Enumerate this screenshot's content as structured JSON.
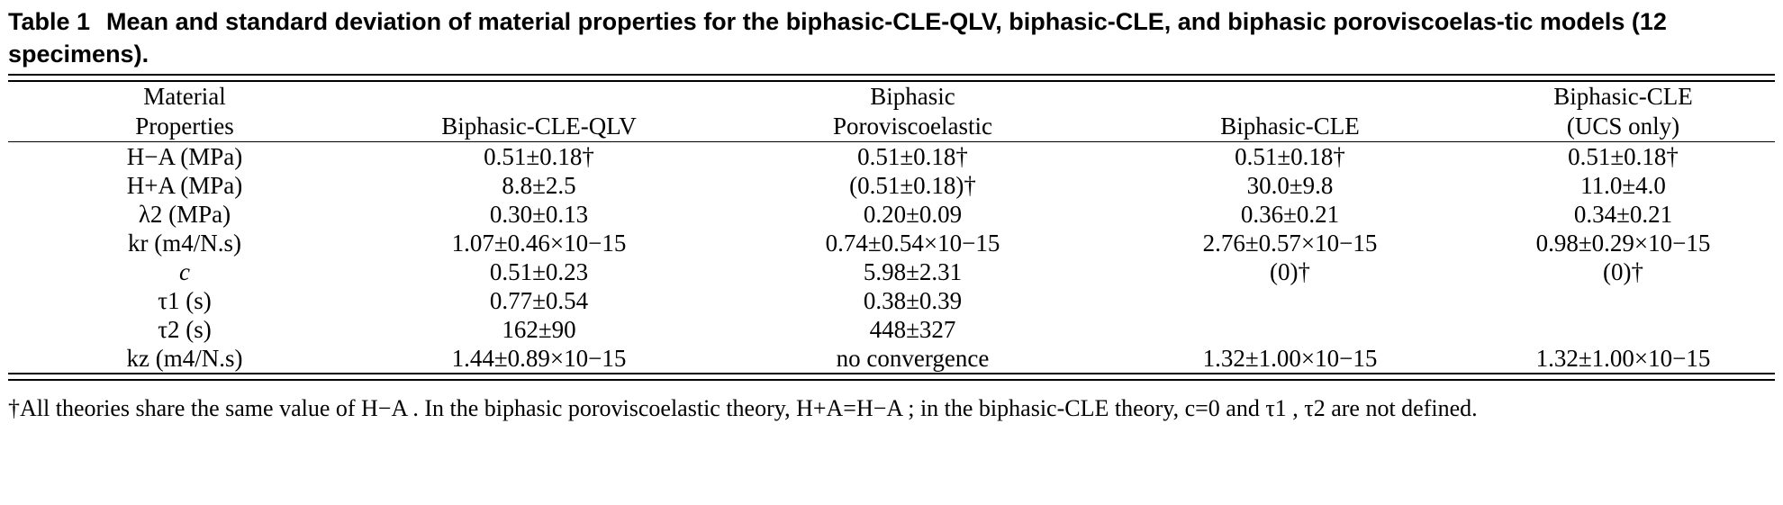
{
  "caption": {
    "label": "Table 1",
    "text": "Mean and standard deviation of material properties for the biphasic-CLE-QLV, biphasic-CLE, and biphasic poroviscoelas-tic models (12 specimens)."
  },
  "headers": {
    "col0": [
      "Material",
      "Properties"
    ],
    "col1": [
      "",
      "Biphasic-CLE-QLV"
    ],
    "col2": [
      "Biphasic",
      "Poroviscoelastic"
    ],
    "col3": [
      "",
      "Biphasic-CLE"
    ],
    "col4": [
      "Biphasic-CLE",
      "(UCS only)"
    ]
  },
  "rows": [
    {
      "property": "H−A (MPa)",
      "qlv": "0.51±0.18†",
      "pve": "0.51±0.18†",
      "cle": "0.51±0.18†",
      "ucs": "0.51±0.18†"
    },
    {
      "property": "H+A (MPa)",
      "qlv": "8.8±2.5",
      "pve": "(0.51±0.18)†",
      "cle": "30.0±9.8",
      "ucs": "11.0±4.0"
    },
    {
      "property": "λ2 (MPa)",
      "qlv": "0.30±0.13",
      "pve": "0.20±0.09",
      "cle": "0.36±0.21",
      "ucs": "0.34±0.21"
    },
    {
      "property": "kr (m4/N.s)",
      "qlv": "1.07±0.46×10−15",
      "pve": "0.74±0.54×10−15",
      "cle": "2.76±0.57×10−15",
      "ucs": "0.98±0.29×10−15"
    },
    {
      "property": "c",
      "qlv": "0.51±0.23",
      "pve": "5.98±2.31",
      "cle": "(0)†",
      "ucs": "(0)†"
    },
    {
      "property": "τ1 (s)",
      "qlv": "0.77±0.54",
      "pve": "0.38±0.39",
      "cle": "",
      "ucs": ""
    },
    {
      "property": "τ2 (s)",
      "qlv": "162±90",
      "pve": "448±327",
      "cle": "",
      "ucs": ""
    },
    {
      "property": "kz (m4/N.s)",
      "qlv": "1.44±0.89×10−15",
      "pve": "no convergence",
      "cle": "1.32±1.00×10−15",
      "ucs": "1.32±1.00×10−15"
    }
  ],
  "footnote": "†All theories share the same value of H−A . In the biphasic poroviscoelastic theory, H+A=H−A ; in the biphasic-CLE theory, c=0 and τ1 , τ2 are not defined."
}
